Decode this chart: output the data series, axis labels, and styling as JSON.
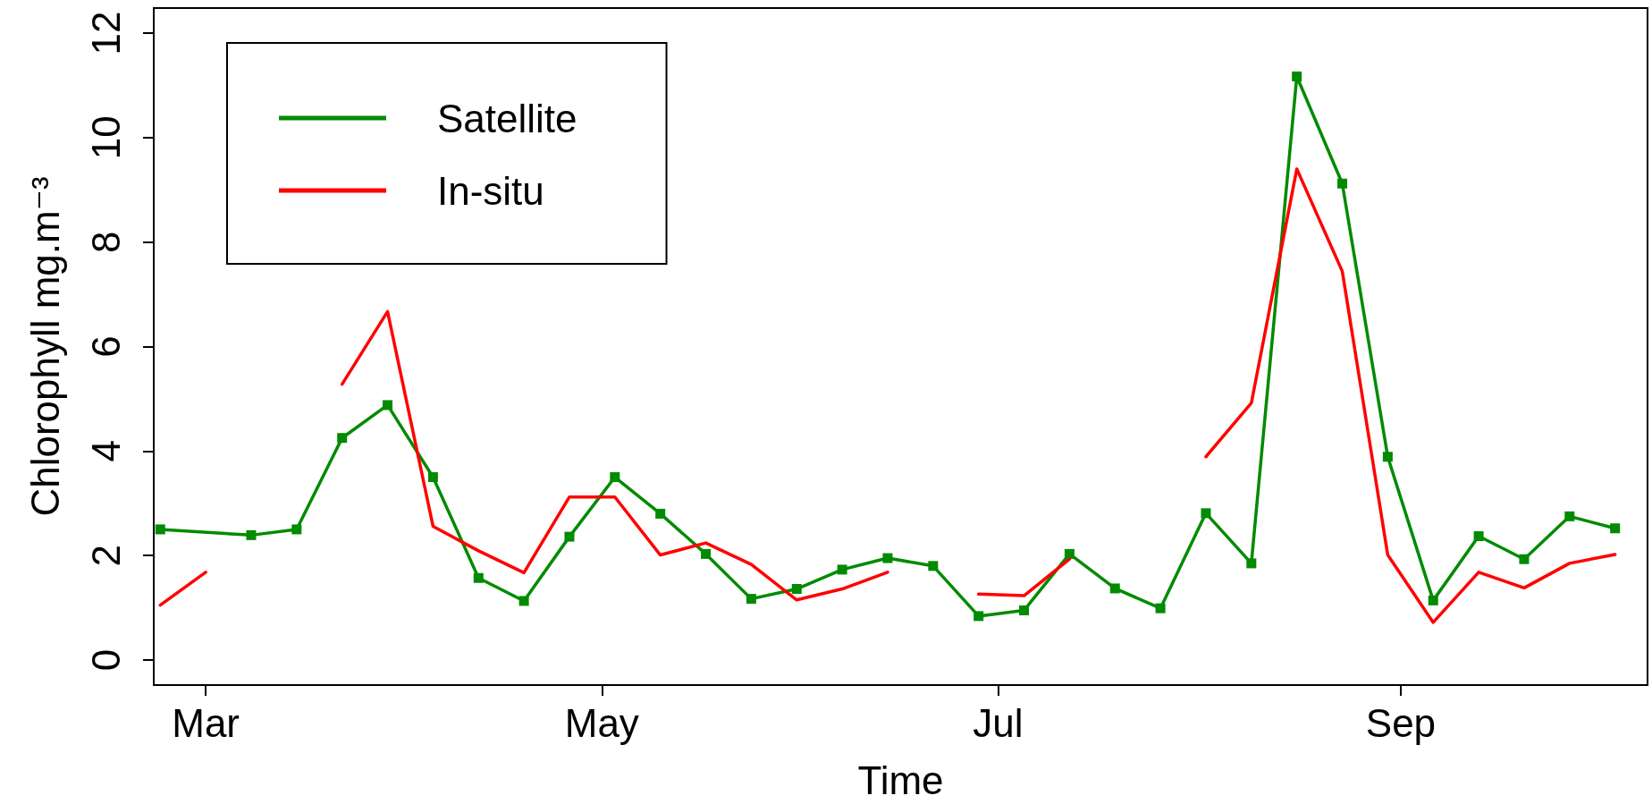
{
  "chart_data": {
    "type": "line",
    "xlabel": "Time",
    "ylabel": "Chlorophyll mg.m⁻³",
    "x": [
      "--02-22",
      "--03-01",
      "--03-08",
      "--03-15",
      "--03-22",
      "--03-29",
      "--04-05",
      "--04-12",
      "--04-19",
      "--04-26",
      "--05-03",
      "--05-10",
      "--05-17",
      "--05-24",
      "--05-31",
      "--06-07",
      "--06-14",
      "--06-21",
      "--06-28",
      "--07-05",
      "--07-12",
      "--07-19",
      "--07-26",
      "--08-02",
      "--08-09",
      "--08-16",
      "--08-23",
      "--08-30",
      "--09-06",
      "--09-13",
      "--09-20",
      "--09-27",
      "--10-04"
    ],
    "series": [
      {
        "name": "Satellite",
        "color": "#008b00",
        "marker": "square",
        "x": [
          "--02-22",
          "--03-08",
          "--03-15",
          "--03-22",
          "--03-29",
          "--04-05",
          "--04-12",
          "--04-19",
          "--04-26",
          "--05-03",
          "--05-10",
          "--05-17",
          "--05-24",
          "--05-31",
          "--06-07",
          "--06-14",
          "--06-21",
          "--06-28",
          "--07-05",
          "--07-12",
          "--07-19",
          "--07-26",
          "--08-02",
          "--08-09",
          "--08-16",
          "--08-23",
          "--08-30",
          "--09-06",
          "--09-13",
          "--09-20",
          "--09-27",
          "--10-04"
        ],
        "values": [
          2.5,
          2.39,
          2.5,
          4.25,
          4.88,
          3.5,
          1.57,
          1.13,
          2.36,
          3.5,
          2.8,
          2.03,
          1.17,
          1.36,
          1.73,
          1.95,
          1.8,
          0.84,
          0.95,
          2.03,
          1.37,
          0.99,
          2.81,
          1.85,
          11.17,
          9.12,
          3.89,
          1.14,
          2.37,
          1.93,
          2.75,
          2.52
        ]
      },
      {
        "name": "In-situ",
        "color": "#ff0000",
        "marker": "none",
        "values": [
          1.05,
          1.68,
          null,
          null,
          5.28,
          6.67,
          2.56,
          2.09,
          1.67,
          3.12,
          3.12,
          2.01,
          2.24,
          1.83,
          1.15,
          1.36,
          1.68,
          null,
          1.26,
          1.23,
          1.93,
          null,
          null,
          3.89,
          4.92,
          9.4,
          7.44,
          2.01,
          0.72,
          1.68,
          1.38,
          1.85,
          2.02
        ]
      }
    ],
    "xlim": [
      "--02-21",
      "--10-09"
    ],
    "xticks": [
      {
        "value": "--03-01",
        "label": "Mar"
      },
      {
        "value": "--05-01",
        "label": "May"
      },
      {
        "value": "--07-01",
        "label": "Jul"
      },
      {
        "value": "--09-01",
        "label": "Sep"
      }
    ],
    "ylim": [
      -0.48,
      12.48
    ],
    "yticks": [
      0,
      2,
      4,
      6,
      8,
      10,
      12
    ],
    "grid": false,
    "legend": "top left",
    "line_style": "solid"
  }
}
